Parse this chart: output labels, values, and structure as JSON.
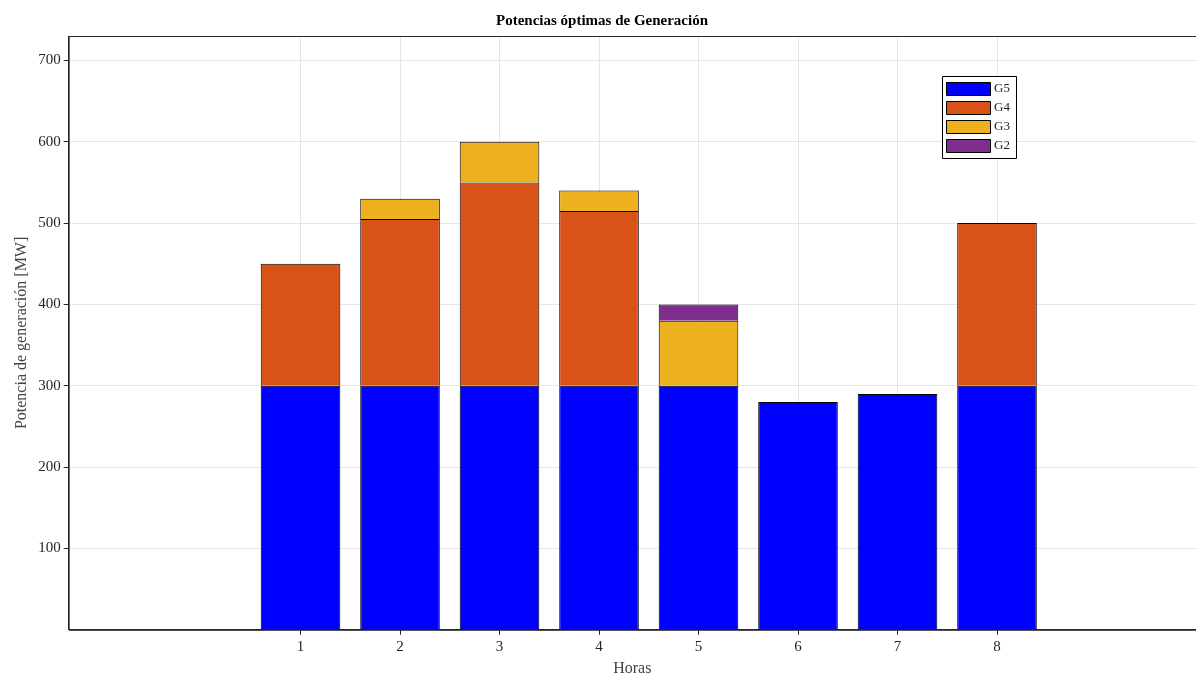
{
  "chart_data": {
    "type": "bar",
    "title": "Potencias óptimas de Generación",
    "xlabel": "Horas",
    "ylabel": "Potencia de generación [MW]",
    "x": [
      1,
      2,
      3,
      4,
      5,
      6,
      7,
      8
    ],
    "xlim": [
      -1.33,
      10
    ],
    "xticks": [
      1,
      2,
      3,
      4,
      5,
      6,
      7,
      8
    ],
    "ylim": [
      0,
      730
    ],
    "yticks": [
      100,
      200,
      300,
      400,
      500,
      600,
      700
    ],
    "stacked": true,
    "grid": true,
    "legend": "top right",
    "series": [
      {
        "name": "G5",
        "color": "#0000ff",
        "values": [
          300,
          300,
          300,
          300,
          300,
          280,
          290,
          300
        ]
      },
      {
        "name": "G4",
        "color": "#d95319",
        "values": [
          150,
          205,
          250,
          215,
          0,
          0,
          0,
          200
        ]
      },
      {
        "name": "G3",
        "color": "#edb120",
        "values": [
          0,
          25,
          50,
          25,
          80,
          0,
          0,
          0
        ]
      },
      {
        "name": "G2",
        "color": "#7e2f8e",
        "values": [
          0,
          0,
          0,
          0,
          20,
          0,
          0,
          0
        ]
      }
    ]
  }
}
